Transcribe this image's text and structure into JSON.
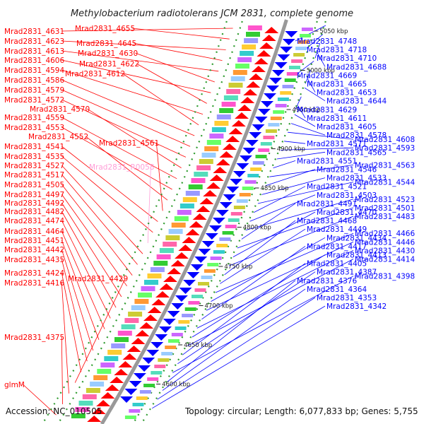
{
  "title": "Methylobacterium radiotolerans JCM 2831, complete genome",
  "accession": "Accession: NC_010505",
  "topology": "Topology: circular; Length: 6,077,833 bp; Genes: 5,755",
  "colors": {
    "forward": "#ff0000",
    "reverse": "#0000ff",
    "rna": "#ff9fd8",
    "backbone": "#999999",
    "dots": "#2e9b2e"
  },
  "left_labels": [
    {
      "text": "Mrad2831_4631",
      "tone": "forward"
    },
    {
      "text": "Mrad2831_4655",
      "tone": "forward"
    },
    {
      "text": "Mrad2831_4623",
      "tone": "forward"
    },
    {
      "text": "Mrad2831_4645",
      "tone": "forward"
    },
    {
      "text": "Mrad2831_4613",
      "tone": "forward"
    },
    {
      "text": "Mrad2831_4630",
      "tone": "forward"
    },
    {
      "text": "Mrad2831_4606",
      "tone": "forward"
    },
    {
      "text": "Mrad2831_4622",
      "tone": "forward"
    },
    {
      "text": "Mrad2831_4594",
      "tone": "forward"
    },
    {
      "text": "Mrad2831_4612",
      "tone": "forward"
    },
    {
      "text": "Mrad2831_4586",
      "tone": "forward"
    },
    {
      "text": "Mrad2831_4579",
      "tone": "forward"
    },
    {
      "text": "Mrad2831_4572",
      "tone": "forward"
    },
    {
      "text": "Mrad2831_4570",
      "tone": "forward"
    },
    {
      "text": "Mrad2831_4559",
      "tone": "forward"
    },
    {
      "text": "Mrad2831_4553",
      "tone": "forward"
    },
    {
      "text": "Mrad2831_4552",
      "tone": "forward"
    },
    {
      "text": "Mrad2831_4561",
      "tone": "forward"
    },
    {
      "text": "Mrad2831_4541",
      "tone": "forward"
    },
    {
      "text": "Mrad2831_4535",
      "tone": "forward"
    },
    {
      "text": "Mrad2831_R0058",
      "tone": "rna"
    },
    {
      "text": "Mrad2831_4527",
      "tone": "forward"
    },
    {
      "text": "Mrad2831_4517",
      "tone": "forward"
    },
    {
      "text": "Mrad2831_4505",
      "tone": "forward"
    },
    {
      "text": "Mrad2831_4497",
      "tone": "forward"
    },
    {
      "text": "Mrad2831_4492",
      "tone": "forward"
    },
    {
      "text": "Mrad2831_4482",
      "tone": "forward"
    },
    {
      "text": "Mrad2831_4474",
      "tone": "forward"
    },
    {
      "text": "Mrad2831_4464",
      "tone": "forward"
    },
    {
      "text": "Mrad2831_4451",
      "tone": "forward"
    },
    {
      "text": "Mrad2831_4442",
      "tone": "forward"
    },
    {
      "text": "Mrad2831_4435",
      "tone": "forward"
    },
    {
      "text": "Mrad2831_4424",
      "tone": "forward"
    },
    {
      "text": "Mrad2831_4429",
      "tone": "forward"
    },
    {
      "text": "Mrad2831_4416",
      "tone": "forward"
    },
    {
      "text": "Mrad2831_4375",
      "tone": "forward"
    },
    {
      "text": "glmM",
      "tone": "forward"
    }
  ],
  "right_labels": [
    "Mrad2831_4748",
    "Mrad2831_4718",
    "Mrad2831_4710",
    "Mrad2831_4688",
    "Mrad2831_4669",
    "Mrad2831_4665",
    "Mrad2831_4653",
    "Mrad2831_4644",
    "Mrad2831_4629",
    "Mrad2831_4611",
    "Mrad2831_4605",
    "Mrad2831_4578",
    "Mrad2831_4608",
    "Mrad2831_4571",
    "Mrad2831_4593",
    "Mrad2831_4565",
    "Mrad2831_4551",
    "Mrad2831_4563",
    "Mrad2831_4546",
    "Mrad2831_4533",
    "Mrad2831_4544",
    "Mrad2831_4521",
    "Mrad2831_4503",
    "Mrad2831_4523",
    "Mrad2831_4491",
    "Mrad2831_4501",
    "Mrad2831_4470",
    "Mrad2831_4483",
    "Mrad2831_4468",
    "Mrad2831_4449",
    "Mrad2831_4466",
    "Mrad2831_4434",
    "Mrad2831_4446",
    "Mrad2831_4417",
    "Mrad2831_4430",
    "Mrad2831_4413",
    "Mrad2831_4414",
    "Mrad2831_4405",
    "Mrad2831_4387",
    "Mrad2831_4398",
    "Mrad2831_4376",
    "Mrad2831_4364",
    "Mrad2831_4353",
    "Mrad2831_4342"
  ],
  "ticks": [
    "5050 kbp",
    "5000 kbp",
    "4950 kbp",
    "4900 kbp",
    "4850 kbp",
    "4800 kbp",
    "4750 kbp",
    "4700 kbp",
    "4650 kbp",
    "4600 kbp"
  ]
}
